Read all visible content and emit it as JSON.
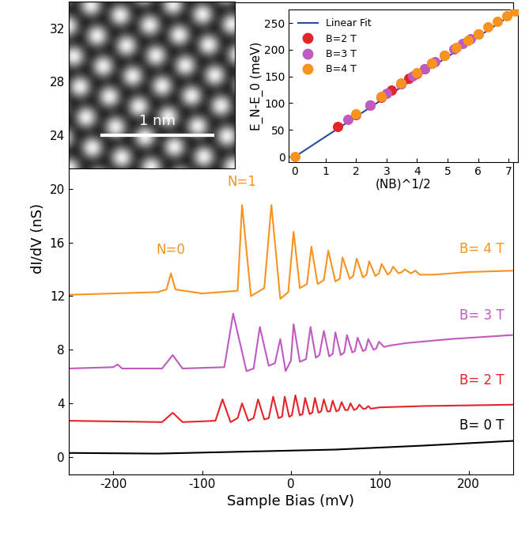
{
  "chart_data": [
    {
      "type": "line",
      "x_label": "Sample Bias (mV)",
      "y_label": "dI/dV (nS)",
      "xlim": [
        -250,
        250
      ],
      "xticks": [
        -200,
        -100,
        0,
        100,
        200
      ],
      "ylim": [
        -1.3,
        33.9
      ],
      "yticks": [
        0,
        4,
        8,
        12,
        16,
        20,
        24,
        28,
        32
      ],
      "series": [
        {
          "name": "B= 4 T",
          "color": "#F7931E",
          "x": [
            -250,
            -150,
            -140,
            -135,
            -130,
            -100,
            -60,
            -55,
            -45,
            -30,
            -22,
            -12,
            -3,
            3,
            10,
            18,
            23,
            30,
            37,
            42,
            50,
            55,
            58,
            66,
            70,
            74,
            81,
            85,
            88,
            95,
            99,
            102,
            109,
            112,
            115,
            121,
            125,
            128,
            135,
            140,
            145,
            160,
            200,
            250
          ],
          "values": [
            12.1,
            12.3,
            12.5,
            13.7,
            12.5,
            12.2,
            12.4,
            18.8,
            12.0,
            12.6,
            18.8,
            11.8,
            12.3,
            16.8,
            12.6,
            12.9,
            15.7,
            12.9,
            13.2,
            15.4,
            13.1,
            13.3,
            14.9,
            13.3,
            13.5,
            14.8,
            13.4,
            13.6,
            14.6,
            13.5,
            13.7,
            14.4,
            13.6,
            13.8,
            14.2,
            13.7,
            13.8,
            14.0,
            13.7,
            13.9,
            13.6,
            13.6,
            13.8,
            13.9
          ],
          "label_x": 215,
          "label_y": 15.0
        },
        {
          "name": "B= 3 T",
          "color": "#C05AC0",
          "x": [
            -250,
            -200,
            -195,
            -190,
            -145,
            -133,
            -122,
            -75,
            -65,
            -50,
            -42,
            -35,
            -25,
            -18,
            -12,
            -6,
            0,
            3,
            10,
            17,
            22,
            28,
            32,
            37,
            43,
            47,
            50,
            56,
            60,
            63,
            69,
            72,
            75,
            81,
            84,
            87,
            93,
            96,
            99,
            105,
            110,
            130,
            180,
            250
          ],
          "values": [
            6.6,
            6.7,
            6.9,
            6.6,
            6.6,
            7.6,
            6.6,
            6.7,
            10.7,
            6.4,
            6.6,
            9.7,
            6.8,
            7.0,
            8.8,
            6.4,
            7.2,
            9.9,
            7.1,
            7.3,
            9.7,
            7.4,
            7.6,
            9.4,
            7.5,
            7.7,
            9.3,
            7.6,
            7.8,
            9.1,
            7.8,
            7.9,
            8.9,
            7.9,
            8.0,
            8.8,
            8.0,
            8.1,
            8.6,
            8.2,
            8.3,
            8.5,
            8.8,
            9.1
          ],
          "label_x": 215,
          "label_y": 10.0
        },
        {
          "name": "B= 2 T",
          "color": "#E5242A",
          "x": [
            -250,
            -145,
            -133,
            -122,
            -85,
            -77,
            -68,
            -60,
            -55,
            -48,
            -42,
            -37,
            -30,
            -25,
            -20,
            -14,
            -10,
            -7,
            -2,
            1,
            5,
            10,
            13,
            16,
            21,
            24,
            27,
            31,
            34,
            37,
            41,
            44,
            47,
            51,
            54,
            57,
            61,
            64,
            67,
            71,
            74,
            77,
            81,
            84,
            87,
            90,
            100,
            150,
            250
          ],
          "values": [
            2.7,
            2.6,
            3.3,
            2.6,
            2.7,
            4.3,
            2.6,
            2.9,
            4.0,
            2.7,
            2.9,
            4.3,
            2.8,
            2.9,
            4.5,
            2.9,
            3.0,
            4.5,
            3.0,
            3.1,
            4.6,
            3.1,
            3.2,
            4.4,
            3.2,
            3.3,
            4.4,
            3.3,
            3.4,
            4.3,
            3.4,
            3.4,
            4.2,
            3.4,
            3.5,
            4.1,
            3.5,
            3.5,
            4.0,
            3.5,
            3.6,
            3.9,
            3.6,
            3.6,
            3.8,
            3.6,
            3.7,
            3.8,
            3.9
          ],
          "label_x": 215,
          "label_y": 5.2
        },
        {
          "name": "B= 0 T",
          "color": "#000000",
          "x": [
            -250,
            -150,
            -50,
            50,
            150,
            250
          ],
          "values": [
            0.3,
            0.25,
            0.4,
            0.55,
            0.85,
            1.2
          ],
          "label_x": 215,
          "label_y": 1.8
        }
      ],
      "annotations": [
        {
          "text": "N=0",
          "x": -135,
          "y": 14.9,
          "color": "#F7931E"
        },
        {
          "text": "N=1",
          "x": -55,
          "y": 20.0,
          "color": "#F7931E"
        }
      ]
    },
    {
      "type": "scatter",
      "x_label": "(NB)^1/2",
      "y_label": "E_N-E_0 (meV)",
      "xlim": [
        -0.2,
        7.3
      ],
      "xticks": [
        0,
        1,
        2,
        3,
        4,
        5,
        6,
        7
      ],
      "ylim": [
        -10,
        275
      ],
      "yticks": [
        0,
        50,
        100,
        150,
        200,
        250
      ],
      "legend": "upper left",
      "series": [
        {
          "name": "Linear Fit",
          "type": "line",
          "color": "#2B4C9B",
          "x": [
            0,
            7.3
          ],
          "values": [
            0,
            273
          ]
        },
        {
          "name": "B=2 T",
          "type": "scatter",
          "color": "#E5242A",
          "marker": "circle",
          "x": [
            1.41,
            2.0,
            2.45,
            2.83,
            3.16,
            3.46,
            3.74,
            4.0,
            4.24,
            4.47
          ],
          "values": [
            57,
            78,
            96,
            111,
            124,
            136,
            146,
            156,
            165,
            174
          ]
        },
        {
          "name": "B=3 T",
          "type": "scatter",
          "color": "#C05AC0",
          "marker": "circle",
          "x": [
            1.73,
            2.45,
            3.0,
            3.46,
            3.87,
            4.24,
            4.58,
            4.9,
            5.2,
            5.48,
            5.74,
            6.0
          ],
          "values": [
            70,
            97,
            118,
            136,
            151,
            165,
            178,
            190,
            201,
            211,
            221,
            230
          ]
        },
        {
          "name": "B=4 T",
          "type": "scatter",
          "color": "#F7931E",
          "marker": "circle",
          "x": [
            0,
            2.0,
            2.83,
            3.46,
            4.0,
            4.47,
            4.9,
            5.29,
            5.66,
            6.0,
            6.32,
            6.63,
            6.93,
            7.21
          ],
          "values": [
            0,
            80,
            112,
            137,
            157,
            175,
            190,
            204,
            218,
            230,
            242,
            253,
            263,
            272
          ]
        }
      ]
    },
    {
      "type": "image",
      "scale_bar_label": "1 nm",
      "tick_labels": false
    }
  ]
}
